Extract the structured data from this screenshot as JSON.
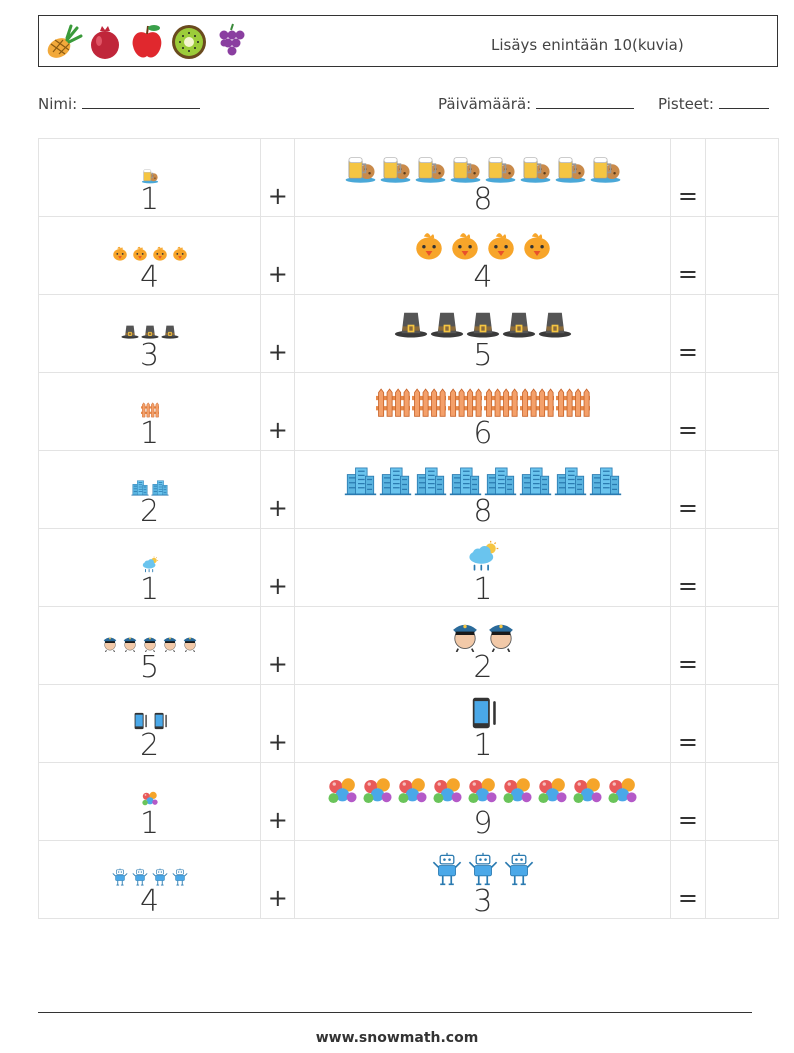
{
  "header": {
    "title": "Lisäys enintään 10(kuvia)",
    "fruits": [
      "pineapple-icon",
      "pomegranate-icon",
      "apple-icon",
      "kiwi-icon",
      "grapes-icon"
    ]
  },
  "meta": {
    "name_label": "Nimi:",
    "date_label": "Päivämäärä:",
    "score_label": "Pisteet:"
  },
  "operators": {
    "plus": "+",
    "equals": "="
  },
  "rows": [
    {
      "a": "1",
      "a_icon": "beer-cookie-icon",
      "b": "8",
      "b_icon": "beer-cookie-icon"
    },
    {
      "a": "4",
      "a_icon": "chick-icon",
      "b": "4",
      "b_icon": "chick-icon"
    },
    {
      "a": "3",
      "a_icon": "pilgrim-hat-icon",
      "b": "5",
      "b_icon": "pilgrim-hat-icon"
    },
    {
      "a": "1",
      "a_icon": "fence-icon",
      "b": "6",
      "b_icon": "fence-icon"
    },
    {
      "a": "2",
      "a_icon": "building-icon",
      "b": "8",
      "b_icon": "building-icon"
    },
    {
      "a": "1",
      "a_icon": "rain-cloud-icon",
      "b": "1",
      "b_icon": "rain-cloud-icon"
    },
    {
      "a": "5",
      "a_icon": "police-officer-icon",
      "b": "2",
      "b_icon": "police-officer-icon"
    },
    {
      "a": "2",
      "a_icon": "phone-icon",
      "b": "1",
      "b_icon": "phone-icon"
    },
    {
      "a": "1",
      "a_icon": "balloons-icon",
      "b": "9",
      "b_icon": "balloons-icon"
    },
    {
      "a": "4",
      "a_icon": "robot-icon",
      "b": "3",
      "b_icon": "robot-icon"
    }
  ],
  "footer": {
    "url": "www.snowmath.com"
  }
}
